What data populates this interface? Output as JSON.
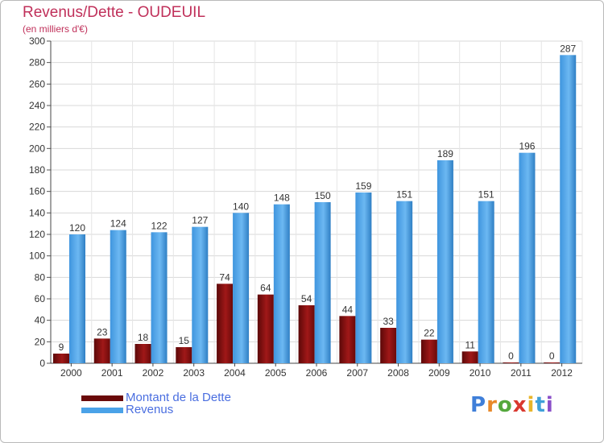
{
  "header": {
    "title": "Revenus/Dette - OUDEUIL",
    "subtitle": "(en milliers d'€)"
  },
  "legend": {
    "items": [
      {
        "label": "Montant de la Dette",
        "color": "#7a0c0c"
      },
      {
        "label": "Revenus",
        "color": "#4aa2e8"
      }
    ]
  },
  "logo": {
    "text": "Proxiti",
    "colors": [
      "#3f7fd9",
      "#e8892a",
      "#55a83d",
      "#d9382f",
      "#e8b52a",
      "#3fa0d9",
      "#8a4fc9"
    ]
  },
  "chart_data": {
    "type": "bar",
    "categories": [
      "2000",
      "2001",
      "2002",
      "2003",
      "2004",
      "2005",
      "2006",
      "2007",
      "2008",
      "2009",
      "2010",
      "2011",
      "2012"
    ],
    "series": [
      {
        "name": "Montant de la Dette",
        "color": "#7a0c0c",
        "values": [
          9,
          23,
          18,
          15,
          74,
          64,
          54,
          44,
          33,
          22,
          11,
          0,
          0
        ]
      },
      {
        "name": "Revenus",
        "color": "#4aa2e8",
        "values": [
          120,
          124,
          122,
          127,
          140,
          148,
          150,
          159,
          151,
          189,
          151,
          196,
          287
        ]
      }
    ],
    "ylim": [
      0,
      300
    ],
    "yticks": [
      "0",
      "20",
      "40",
      "60",
      "80",
      "100",
      "120",
      "140",
      "160",
      "180",
      "200",
      "220",
      "240",
      "260",
      "280",
      "300"
    ],
    "grid": true,
    "legend_position": "bottom-left"
  }
}
